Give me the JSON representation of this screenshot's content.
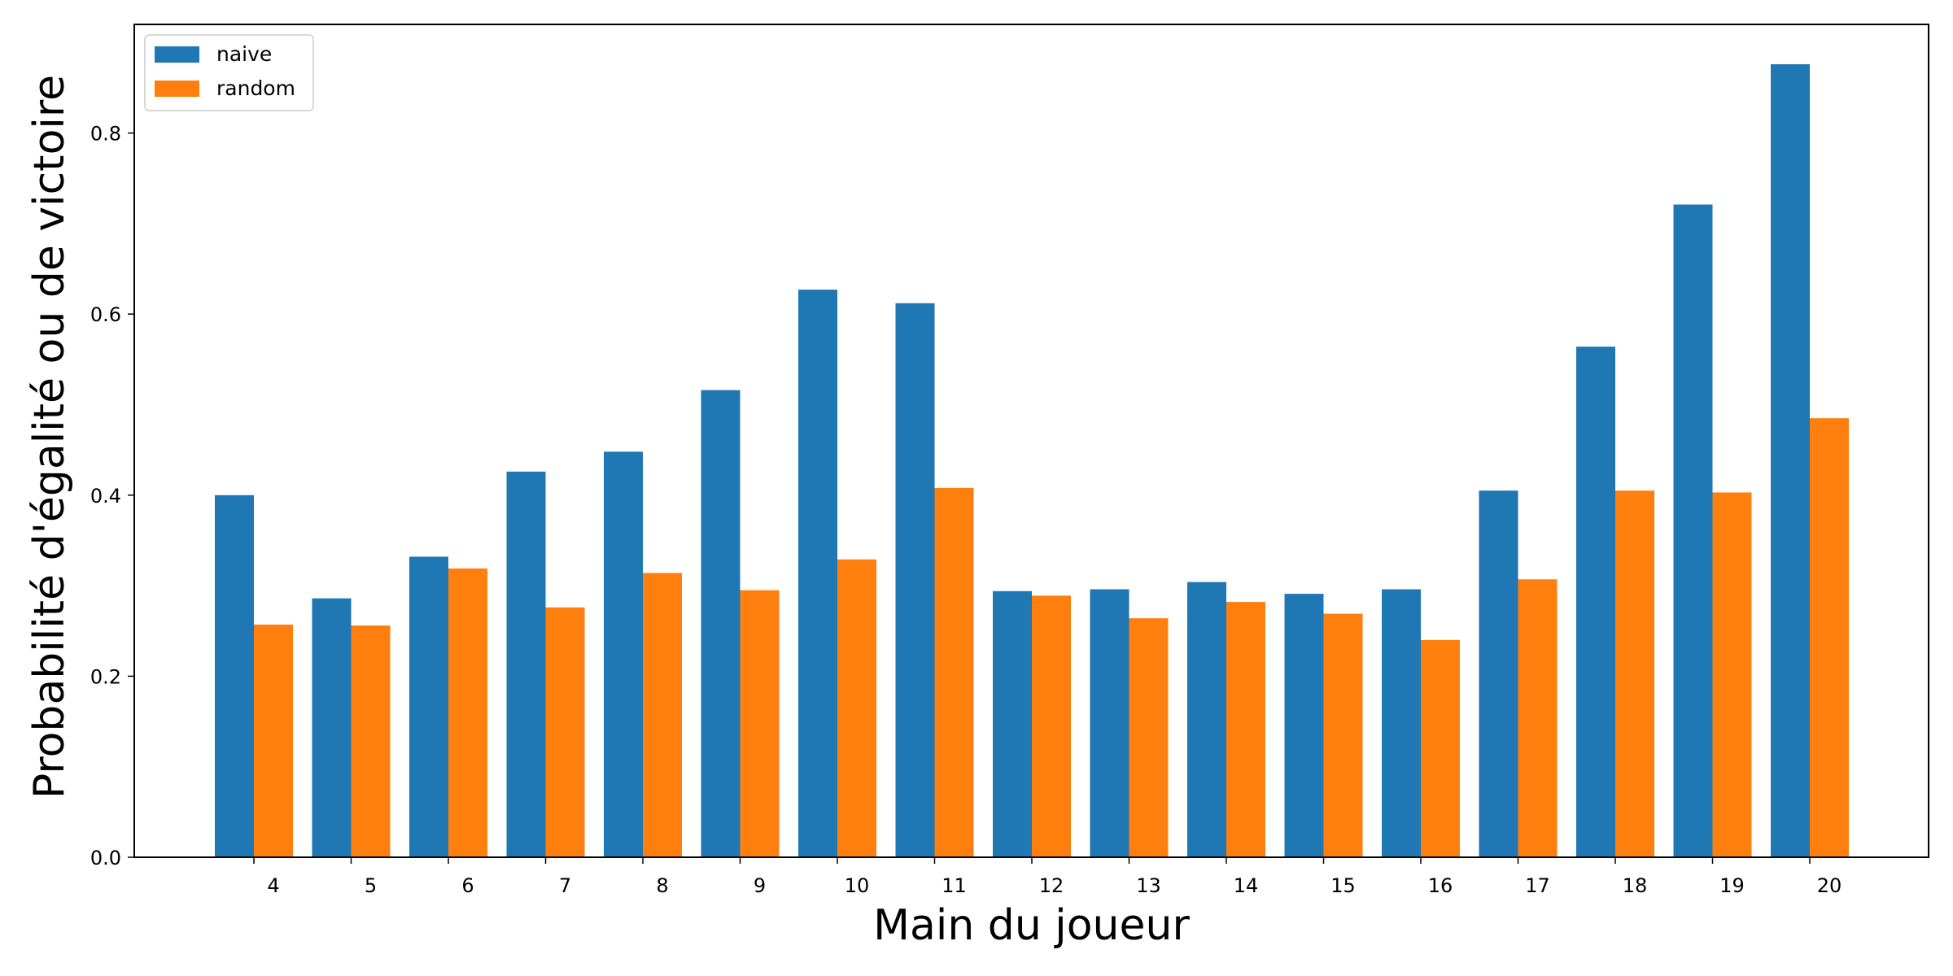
{
  "chart_data": {
    "type": "bar",
    "xlabel": "Main du joueur",
    "ylabel": "Probabilité d'égalité ou de victoire",
    "categories": [
      "4",
      "5",
      "6",
      "7",
      "8",
      "9",
      "10",
      "11",
      "12",
      "13",
      "14",
      "15",
      "16",
      "17",
      "18",
      "19",
      "20"
    ],
    "ylim": [
      0,
      0.92
    ],
    "yticks": [
      "0.0",
      "0.2",
      "0.4",
      "0.6",
      "0.8"
    ],
    "ytick_values": [
      0,
      0.2,
      0.4,
      0.6,
      0.8
    ],
    "grid": false,
    "legend_position": "top-left",
    "series": [
      {
        "name": "naive",
        "color": "#1f77b4",
        "values": [
          0.4,
          0.286,
          0.332,
          0.426,
          0.448,
          0.516,
          0.627,
          0.612,
          0.294,
          0.296,
          0.304,
          0.291,
          0.296,
          0.405,
          0.564,
          0.721,
          0.876
        ]
      },
      {
        "name": "random",
        "color": "#ff7f0e",
        "values": [
          0.257,
          0.256,
          0.319,
          0.276,
          0.314,
          0.295,
          0.329,
          0.408,
          0.289,
          0.264,
          0.282,
          0.269,
          0.24,
          0.307,
          0.405,
          0.403,
          0.485
        ]
      }
    ]
  }
}
